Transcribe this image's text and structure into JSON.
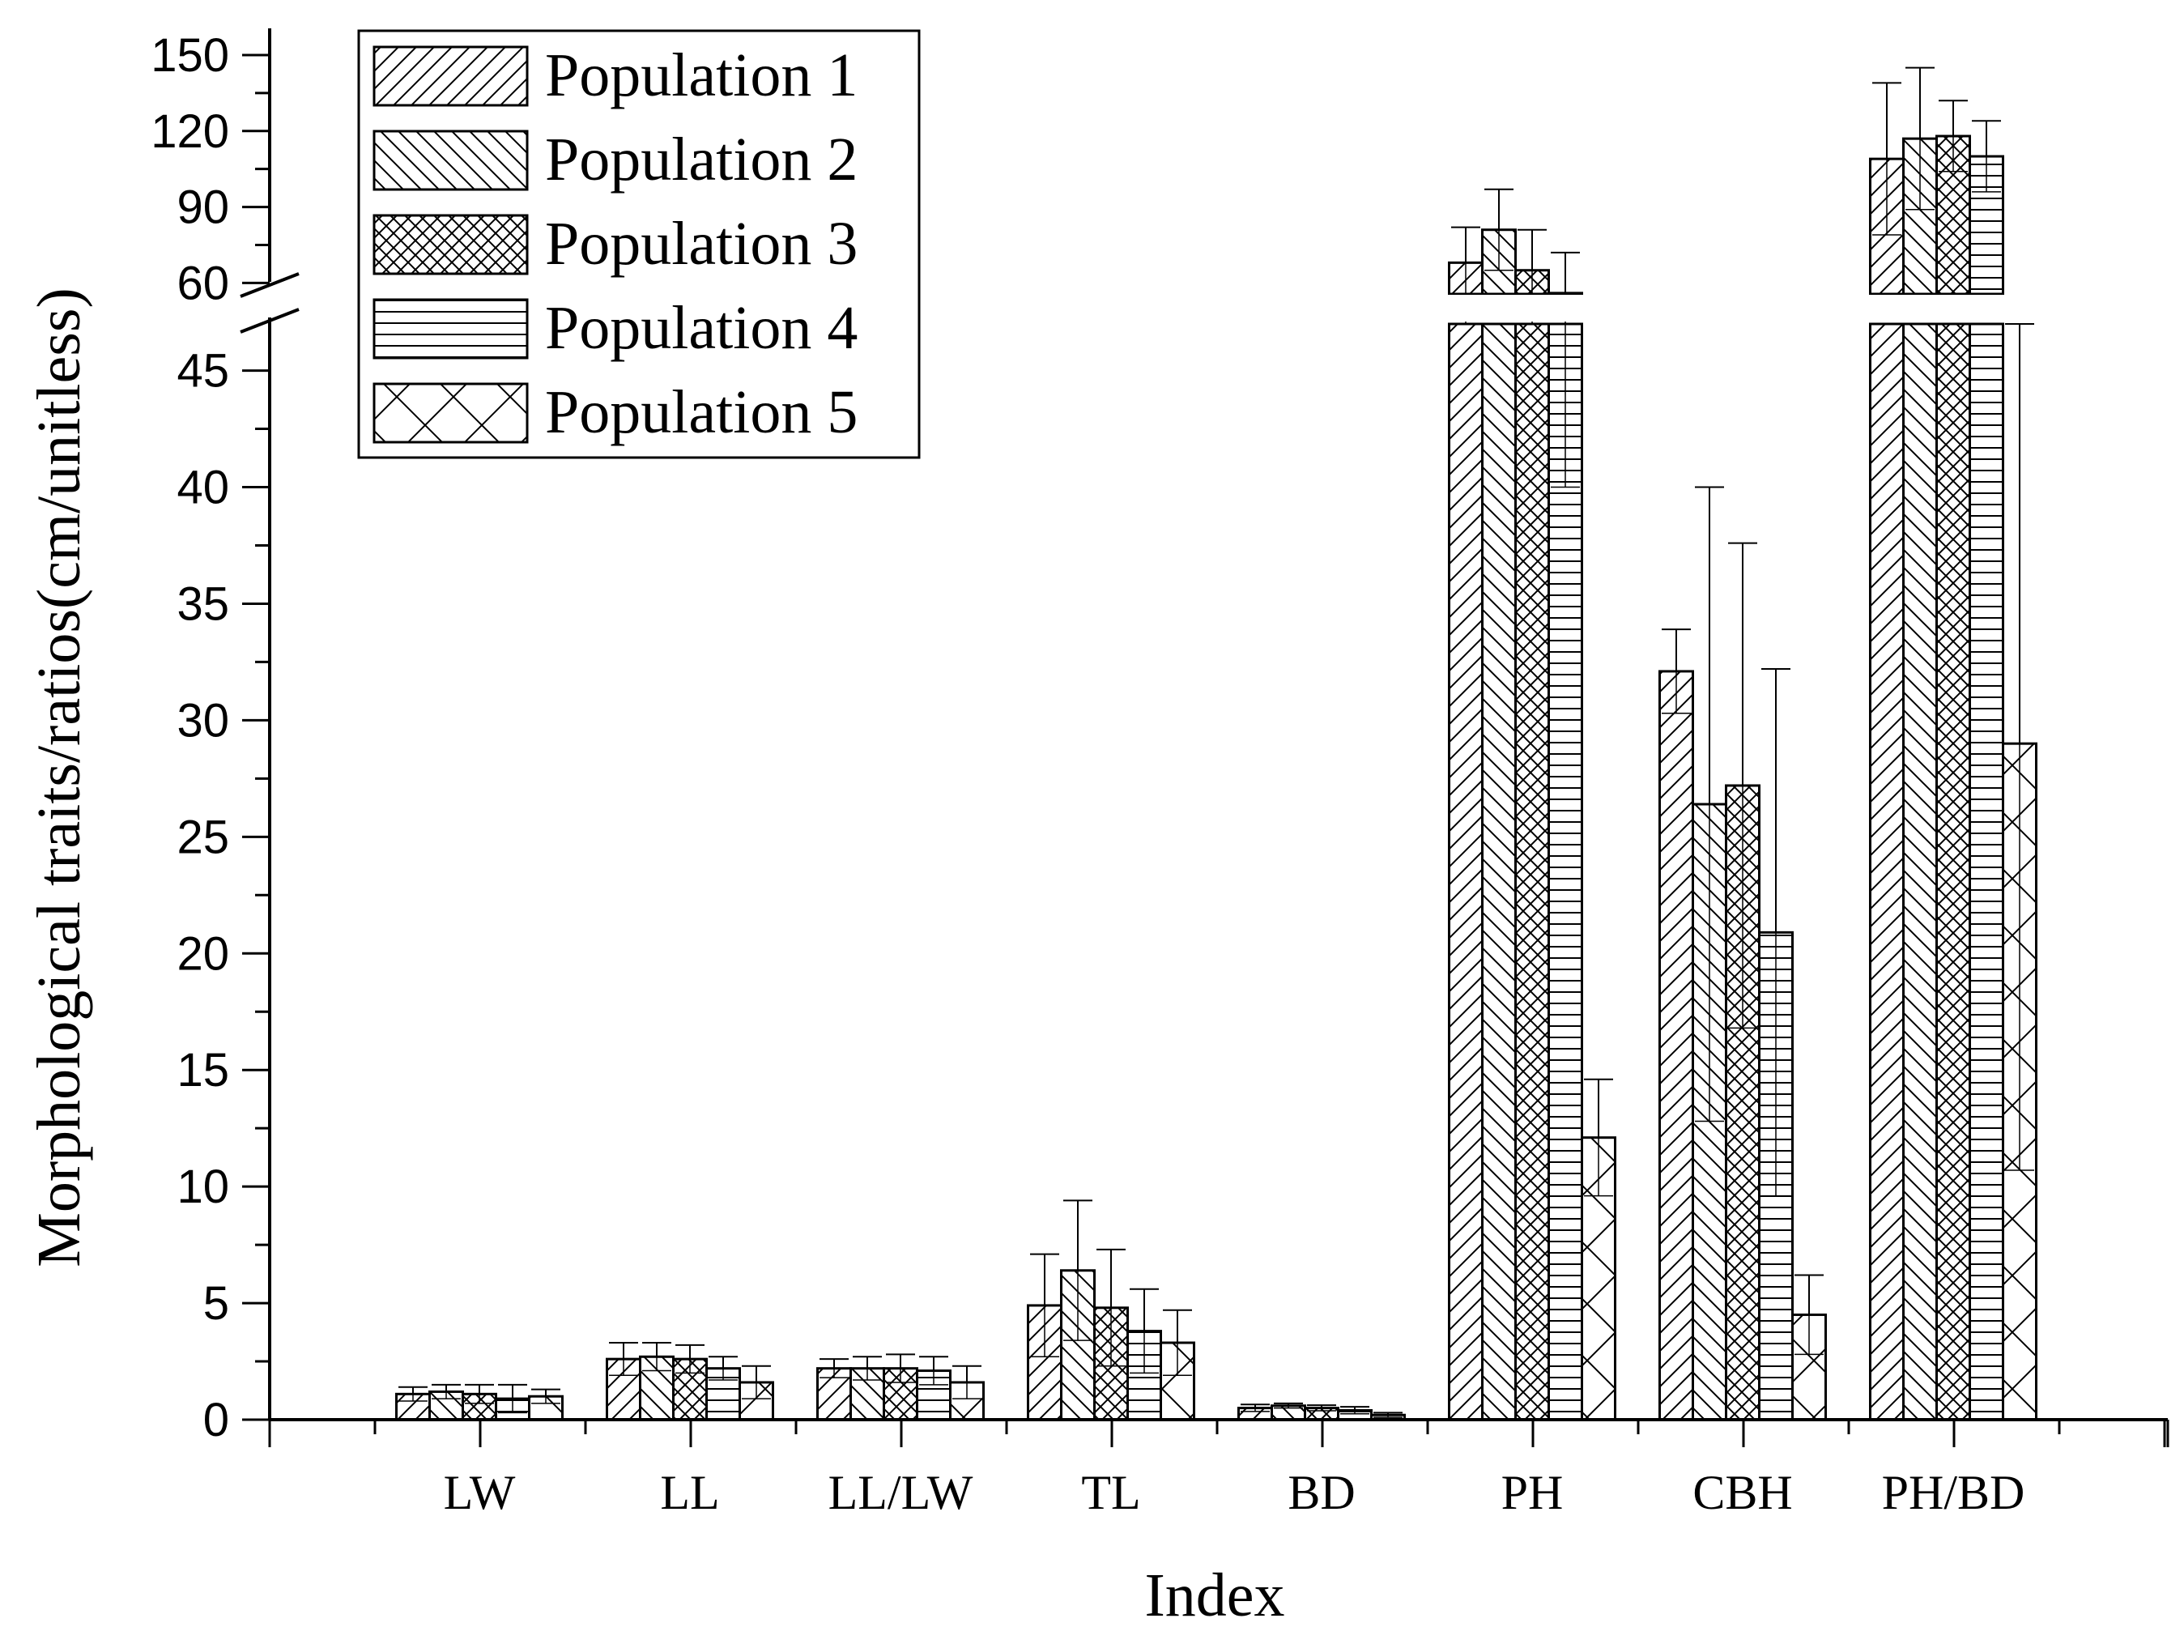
{
  "chart_data": {
    "type": "bar",
    "title": "",
    "xlabel": "Index",
    "ylabel": "Morphological traits/ratios(cm/unitless)",
    "categories": [
      "LW",
      "LL",
      "LL/LW",
      "TL",
      "BD",
      "PH",
      "CBH",
      "PH/BD"
    ],
    "series": [
      {
        "name": "Population 1",
        "pattern": "diag-up",
        "values": [
          1.1,
          2.6,
          2.2,
          4.9,
          0.5,
          68,
          32.1,
          109
        ],
        "errors": [
          0.3,
          0.7,
          0.4,
          2.2,
          0.15,
          14,
          1.8,
          30
        ]
      },
      {
        "name": "Population 2",
        "pattern": "diag-down",
        "values": [
          1.2,
          2.7,
          2.2,
          6.4,
          0.6,
          81,
          26.4,
          117
        ],
        "errors": [
          0.3,
          0.6,
          0.5,
          3.0,
          0.1,
          16,
          13.6,
          28
        ]
      },
      {
        "name": "Population 3",
        "pattern": "crosshatch",
        "values": [
          1.1,
          2.6,
          2.2,
          4.8,
          0.5,
          65,
          27.2,
          118
        ],
        "errors": [
          0.4,
          0.6,
          0.6,
          2.5,
          0.12,
          16,
          10.4,
          14
        ]
      },
      {
        "name": "Population 4",
        "pattern": "horizontal",
        "values": [
          0.9,
          2.2,
          2.1,
          3.8,
          0.4,
          56,
          20.9,
          110
        ],
        "errors": [
          0.6,
          0.5,
          0.6,
          1.8,
          0.15,
          16,
          11.3,
          14
        ]
      },
      {
        "name": "Population 5",
        "pattern": "big-x",
        "values": [
          1.0,
          1.6,
          1.6,
          3.3,
          0.2,
          12.1,
          4.5,
          29
        ],
        "errors": [
          0.3,
          0.7,
          0.7,
          1.4,
          0.1,
          2.5,
          1.7,
          18.3
        ]
      }
    ],
    "y_axis": {
      "lower_segment": {
        "range": [
          0,
          47
        ],
        "ticks": [
          0,
          5,
          10,
          15,
          20,
          25,
          30,
          35,
          40,
          45
        ]
      },
      "upper_segment": {
        "range": [
          55,
          150
        ],
        "ticks": [
          60,
          90,
          120,
          150
        ]
      },
      "break_between": [
        47,
        55
      ]
    },
    "legend": {
      "position": "top-left"
    }
  }
}
